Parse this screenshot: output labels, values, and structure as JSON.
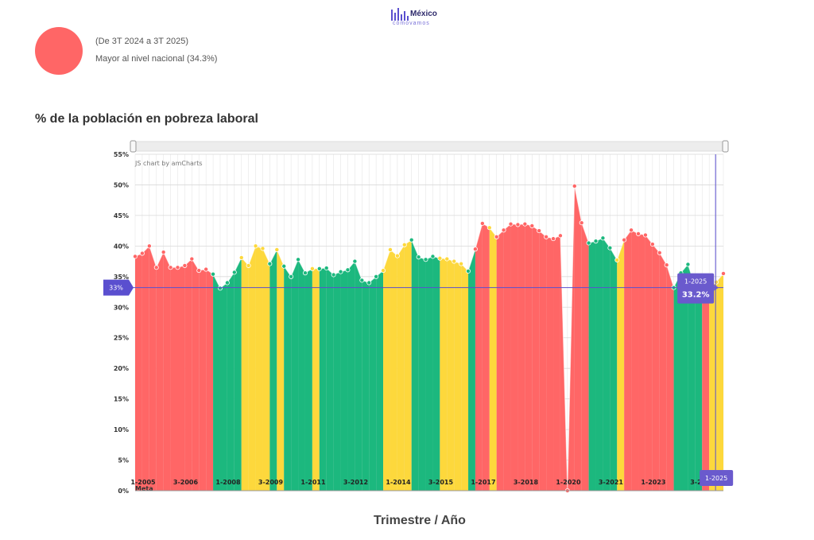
{
  "brand": {
    "name": "México",
    "tagline": "cómovamos"
  },
  "summary": {
    "status_color": "#ff6666",
    "period": "(De 3T 2024 a 3T 2025)",
    "comparison": "Mayor al nivel nacional (34.3%)"
  },
  "chart_title": "% de la población en pobreza laboral",
  "x_title": "Trimestre / Año",
  "credit": "JS chart by amCharts",
  "colors": {
    "red": "#ff6666",
    "green": "#1cb87e",
    "yellow": "#fdd83c",
    "meta": "#5a4fcf",
    "cursor_label": "#6a5acd"
  },
  "chart_data": {
    "type": "area",
    "ylim": [
      0,
      55
    ],
    "y_ticks": [
      "0%",
      "5%",
      "10%",
      "15%",
      "20%",
      "25%",
      "30%",
      "35%",
      "40%",
      "45%",
      "50%",
      "55%"
    ],
    "x_labels": [
      {
        "i": 0,
        "label": "1-2005"
      },
      {
        "i": 6,
        "label": "3-2006"
      },
      {
        "i": 12,
        "label": "1-2008"
      },
      {
        "i": 18,
        "label": "3-2009"
      },
      {
        "i": 24,
        "label": "1-2011"
      },
      {
        "i": 30,
        "label": "3-2012"
      },
      {
        "i": 36,
        "label": "1-2014"
      },
      {
        "i": 42,
        "label": "3-2015"
      },
      {
        "i": 48,
        "label": "1-2017"
      },
      {
        "i": 54,
        "label": "3-2018"
      },
      {
        "i": 60,
        "label": "1-2020"
      },
      {
        "i": 66,
        "label": "3-2021"
      },
      {
        "i": 72,
        "label": "1-2023"
      },
      {
        "i": 78,
        "label": "3-2"
      }
    ],
    "series": [
      {
        "values": [
          38.3,
          38.8,
          40.0,
          36.5,
          39.0,
          36.5,
          36.5,
          36.8,
          37.9,
          36.0,
          36.2,
          35.4,
          33.1,
          34.0,
          35.7,
          38.1,
          36.8,
          40.0,
          39.6,
          37.1,
          39.4,
          36.7,
          35.0,
          37.8,
          35.6,
          36.3,
          36.3,
          36.4,
          35.3,
          35.8,
          36.1,
          37.5,
          34.4,
          34.0,
          35.0,
          36.0,
          39.4,
          38.4,
          40.2,
          41.0,
          38.2,
          37.8,
          38.3,
          38.0,
          37.9,
          37.5,
          37.1,
          35.9,
          39.5,
          43.7,
          43.0,
          41.5,
          42.6,
          43.6,
          43.5,
          43.6,
          43.3,
          42.5,
          41.5,
          41.2,
          41.7,
          0,
          49.8,
          43.8,
          40.5,
          40.8,
          41.3,
          39.7,
          37.7,
          41.0,
          42.6,
          42.0,
          41.8,
          40.3,
          38.9,
          36.9,
          33.2,
          35.6,
          37.0,
          33.2,
          35.0,
          33.2,
          34.1,
          35.5
        ],
        "colors": [
          "r",
          "r",
          "r",
          "r",
          "r",
          "r",
          "r",
          "r",
          "r",
          "r",
          "r",
          "g",
          "g",
          "g",
          "g",
          "y",
          "y",
          "y",
          "y",
          "g",
          "y",
          "g",
          "g",
          "g",
          "g",
          "y",
          "g",
          "g",
          "g",
          "g",
          "g",
          "g",
          "g",
          "g",
          "g",
          "y",
          "y",
          "y",
          "y",
          "g",
          "g",
          "g",
          "g",
          "y",
          "y",
          "y",
          "y",
          "g",
          "r",
          "r",
          "y",
          "r",
          "r",
          "r",
          "r",
          "r",
          "r",
          "r",
          "r",
          "r",
          "r",
          "r",
          "r",
          "r",
          "g",
          "g",
          "g",
          "g",
          "y",
          "r",
          "r",
          "r",
          "r",
          "r",
          "r",
          "r",
          "g",
          "g",
          "g",
          "g",
          "r",
          "y",
          "y",
          "r"
        ]
      }
    ],
    "meta": {
      "value": 33.2,
      "label": "33%",
      "name": "Meta"
    },
    "cursor": {
      "date": "1-2025",
      "value": "33.2%",
      "index": 81
    },
    "grid": true
  }
}
